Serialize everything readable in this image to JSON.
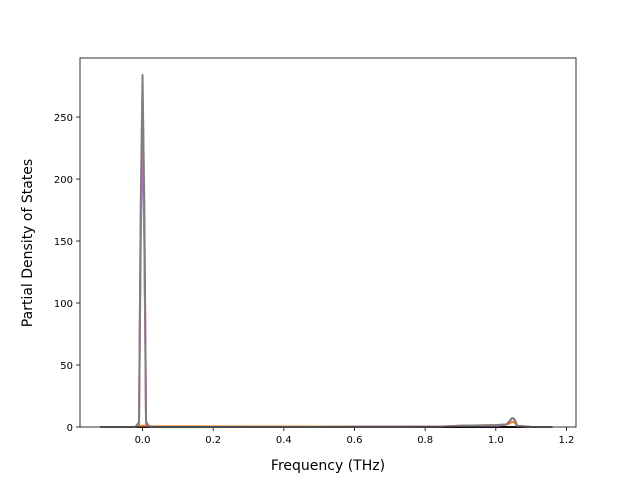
{
  "chart_data": {
    "type": "line",
    "xlabel": "Frequency (THz)",
    "ylabel": "Partial Density of States",
    "x": [
      -0.12,
      -0.02,
      -0.01,
      -0.005,
      0,
      0.005,
      0.01,
      0.02,
      0.1,
      0.5,
      0.85,
      0.9,
      1.0,
      1.03,
      1.04,
      1.045,
      1.05,
      1.055,
      1.06,
      1.1,
      1.16
    ],
    "series": [
      {
        "color": "#1a1a1a",
        "values": [
          0,
          0,
          0,
          0,
          0,
          0,
          0,
          0,
          0,
          0,
          0,
          0,
          0,
          0,
          0,
          0,
          0,
          0,
          0,
          0,
          0
        ]
      },
      {
        "color": "#ff7f0e",
        "values": [
          0,
          0,
          0.5,
          1,
          1,
          1,
          0.5,
          0.5,
          0.5,
          0.3,
          0.5,
          1,
          1.5,
          2,
          3,
          4,
          4,
          3,
          0.5,
          0,
          0
        ]
      },
      {
        "color": "#9467bd",
        "values": [
          0,
          0,
          2,
          150,
          250,
          150,
          2,
          0,
          0,
          0,
          0.3,
          1,
          1,
          2,
          5,
          7,
          7,
          5,
          1,
          0,
          0
        ]
      },
      {
        "color": "#e377c2",
        "values": [
          0,
          0,
          3,
          170,
          270,
          170,
          3,
          0,
          0,
          0,
          0.3,
          1,
          1,
          2,
          5,
          7,
          7,
          5,
          1,
          0,
          0
        ]
      },
      {
        "color": "#7f7f7f",
        "values": [
          0,
          0,
          4,
          180,
          284,
          180,
          4,
          0,
          0,
          0,
          0.3,
          1,
          1.5,
          2,
          5,
          7,
          7,
          5,
          1,
          0,
          0
        ]
      }
    ],
    "xlim": [
      -0.177,
      1.227
    ],
    "ylim": [
      0,
      297.6
    ],
    "xticks": [
      {
        "value": 0,
        "label": "0.0"
      },
      0.2,
      0.4,
      0.6,
      0.8,
      {
        "value": 1,
        "label": "1.0"
      },
      1.2
    ],
    "yticks": [
      0,
      50,
      100,
      150,
      200,
      250
    ],
    "grid": false
  }
}
